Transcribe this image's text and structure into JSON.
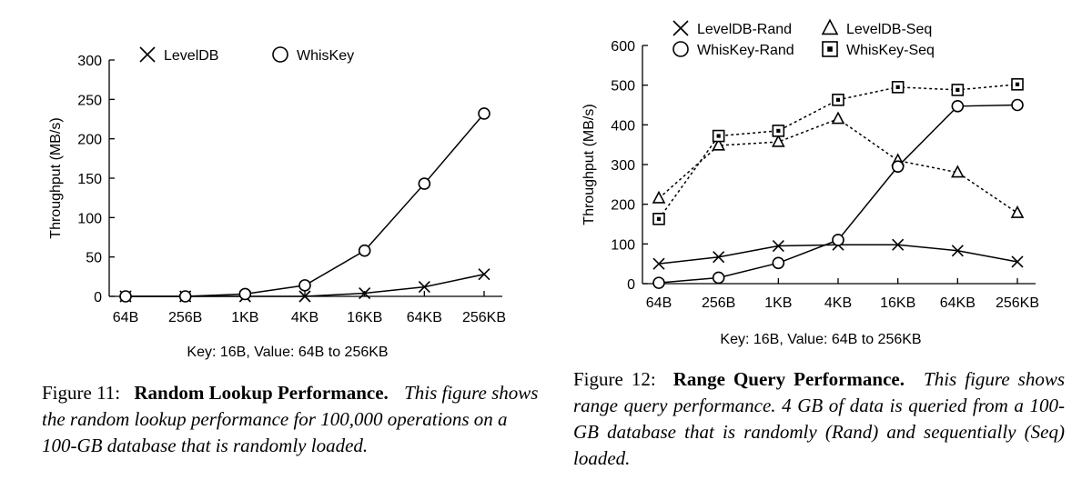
{
  "chart_data": [
    {
      "type": "line",
      "xlabel": "Key: 16B, Value: 64B to 256KB",
      "ylabel": "Throughput (MB/s)",
      "categories": [
        "64B",
        "256B",
        "1KB",
        "4KB",
        "16KB",
        "64KB",
        "256KB"
      ],
      "ylim": [
        0,
        300
      ],
      "yticks": [
        0,
        50,
        100,
        150,
        200,
        250,
        300
      ],
      "legend": "top",
      "grid": false,
      "series": [
        {
          "name": "LevelDB",
          "marker": "x",
          "dash": false,
          "values": [
            0,
            0,
            0,
            0,
            4,
            12,
            28
          ]
        },
        {
          "name": "WhisKey",
          "marker": "circle",
          "dash": false,
          "values": [
            0,
            0,
            3,
            14,
            58,
            143,
            232
          ]
        }
      ]
    },
    {
      "type": "line",
      "xlabel": "Key: 16B, Value: 64B to 256KB",
      "ylabel": "Throughput (MB/s)",
      "categories": [
        "64B",
        "256B",
        "1KB",
        "4KB",
        "16KB",
        "64KB",
        "256KB"
      ],
      "ylim": [
        0,
        600
      ],
      "yticks": [
        0,
        100,
        200,
        300,
        400,
        500,
        600
      ],
      "legend": "top",
      "grid": false,
      "series": [
        {
          "name": "LevelDB-Rand",
          "marker": "x",
          "dash": false,
          "values": [
            50,
            67,
            95,
            98,
            98,
            83,
            55
          ]
        },
        {
          "name": "LevelDB-Seq",
          "marker": "triangle",
          "dash": true,
          "values": [
            215,
            348,
            357,
            415,
            310,
            280,
            178
          ]
        },
        {
          "name": "WhisKey-Rand",
          "marker": "circle",
          "dash": false,
          "values": [
            2,
            15,
            52,
            110,
            295,
            447,
            450
          ]
        },
        {
          "name": "WhisKey-Seq",
          "marker": "square",
          "dash": true,
          "values": [
            163,
            372,
            385,
            463,
            495,
            488,
            502
          ]
        }
      ]
    }
  ],
  "captions": {
    "fig11": {
      "number": "Figure 11:",
      "title": "Random Lookup Performance.",
      "body": "This figure shows the random lookup performance for 100,000 operations on a 100-GB database that is randomly loaded."
    },
    "fig12": {
      "number": "Figure 12:",
      "title": "Range Query Performance.",
      "body": "This figure shows range query performance. 4 GB of data is queried from a 100-GB database that is randomly (Rand) and sequentially (Seq) loaded."
    }
  }
}
